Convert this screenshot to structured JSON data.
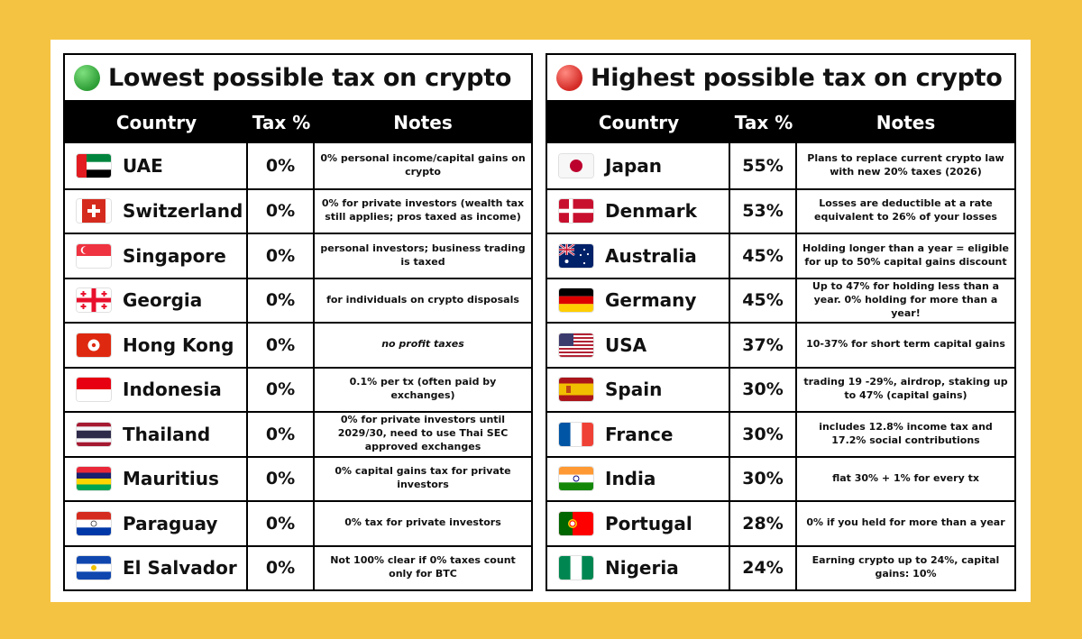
{
  "left_table": {
    "title": "Lowest possible tax on crypto",
    "dot_color": "#3CB043",
    "dot_icon": "green-circle-icon",
    "headers": {
      "country": "Country",
      "tax": "Tax %",
      "notes": "Notes"
    },
    "rows": [
      {
        "country": "UAE",
        "flag": "uae-flag-icon",
        "tax": "0%",
        "notes": "0% personal income/capital gains on crypto"
      },
      {
        "country": "Switzerland",
        "flag": "switzerland-flag-icon",
        "tax": "0%",
        "notes": "0% for private investors (wealth tax still applies; pros taxed as income)"
      },
      {
        "country": "Singapore",
        "flag": "singapore-flag-icon",
        "tax": "0%",
        "notes": "personal investors; business trading is taxed"
      },
      {
        "country": "Georgia",
        "flag": "georgia-flag-icon",
        "tax": "0%",
        "notes": "for individuals on crypto disposals"
      },
      {
        "country": "Hong Kong",
        "flag": "hong-kong-flag-icon",
        "tax": "0%",
        "notes": "no profit taxes"
      },
      {
        "country": "Indonesia",
        "flag": "indonesia-flag-icon",
        "tax": "0%",
        "notes": "0.1% per tx (often paid by exchanges)"
      },
      {
        "country": "Thailand",
        "flag": "thailand-flag-icon",
        "tax": "0%",
        "notes": "0% for private investors until 2029/30, need to use Thai SEC approved exchanges"
      },
      {
        "country": "Mauritius",
        "flag": "mauritius-flag-icon",
        "tax": "0%",
        "notes": "0% capital gains tax for private investors"
      },
      {
        "country": "Paraguay",
        "flag": "paraguay-flag-icon",
        "tax": "0%",
        "notes": "0% tax for private investors"
      },
      {
        "country": "El Salvador",
        "flag": "el-salvador-flag-icon",
        "tax": "0%",
        "notes": "Not 100% clear if 0% taxes count only for BTC"
      }
    ]
  },
  "right_table": {
    "title": "Highest possible tax on crypto",
    "dot_color": "#E8322E",
    "dot_icon": "red-circle-icon",
    "headers": {
      "country": "Country",
      "tax": "Tax %",
      "notes": "Notes"
    },
    "rows": [
      {
        "country": "Japan",
        "flag": "japan-flag-icon",
        "tax": "55%",
        "notes": "Plans to replace current crypto law with new 20% taxes (2026)"
      },
      {
        "country": "Denmark",
        "flag": "denmark-flag-icon",
        "tax": "53%",
        "notes": "Losses are deductible at a rate equivalent to 26% of your losses"
      },
      {
        "country": "Australia",
        "flag": "australia-flag-icon",
        "tax": "45%",
        "notes": "Holding longer than a year = eligible for up to 50% capital gains discount"
      },
      {
        "country": "Germany",
        "flag": "germany-flag-icon",
        "tax": "45%",
        "notes": "Up to 47% for holding less than a year. 0% holding for more than a year!"
      },
      {
        "country": "USA",
        "flag": "usa-flag-icon",
        "tax": "37%",
        "notes": "10-37% for short term capital gains"
      },
      {
        "country": "Spain",
        "flag": "spain-flag-icon",
        "tax": "30%",
        "notes": "trading 19 -29%, airdrop, staking up to 47% (capital gains)"
      },
      {
        "country": "France",
        "flag": "france-flag-icon",
        "tax": "30%",
        "notes": "includes 12.8% income tax and 17.2% social contributions"
      },
      {
        "country": "India",
        "flag": "india-flag-icon",
        "tax": "30%",
        "notes": "flat 30% + 1% for every tx"
      },
      {
        "country": "Portugal",
        "flag": "portugal-flag-icon",
        "tax": "28%",
        "notes": "0% if you held for more than a year"
      },
      {
        "country": "Nigeria",
        "flag": "nigeria-flag-icon",
        "tax": "24%",
        "notes": "Earning crypto up to 24%, capital gains: 10%"
      }
    ]
  }
}
